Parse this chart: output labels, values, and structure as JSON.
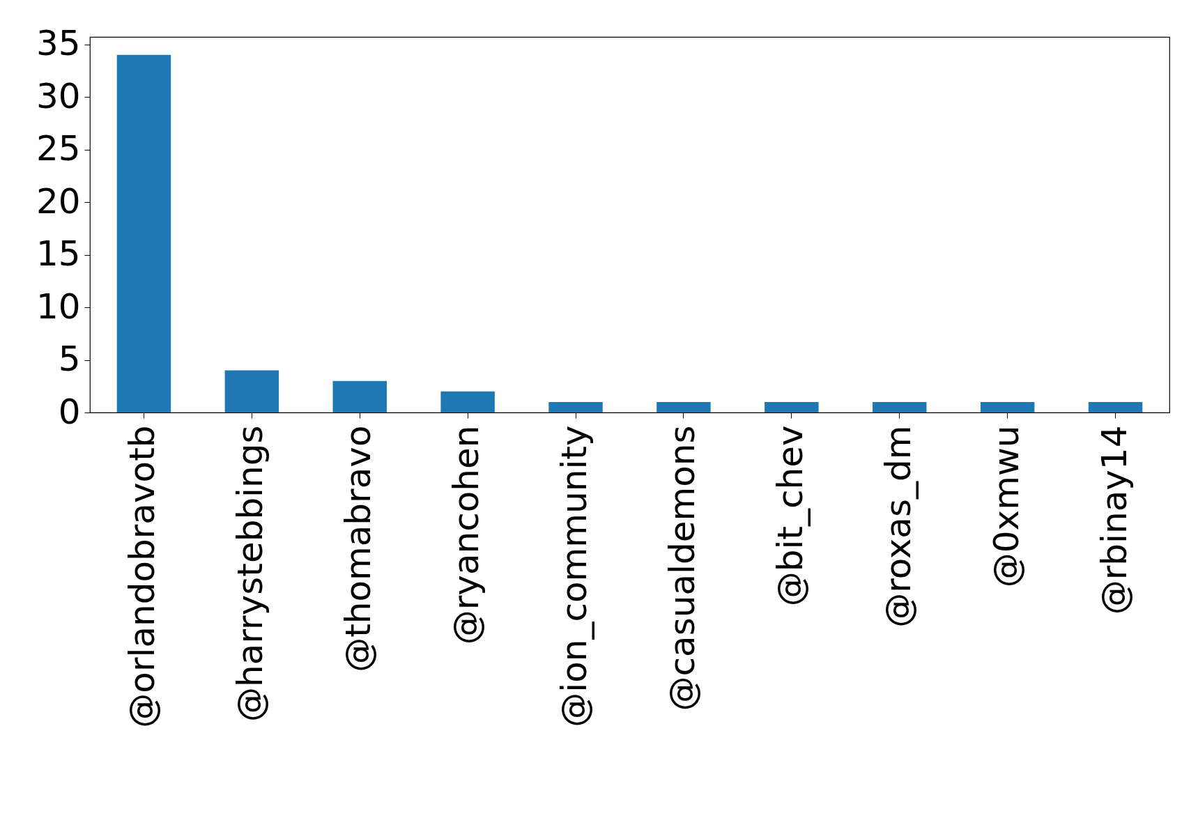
{
  "chart_data": {
    "type": "bar",
    "categories": [
      "@orlandobravotb",
      "@harrystebbings",
      "@thomabravo",
      "@ryancohen",
      "@ion_community",
      "@casualdemons",
      "@bit_chev",
      "@roxas_dm",
      "@0xmwu",
      "@rbinay14"
    ],
    "values": [
      34,
      4,
      3,
      2,
      1,
      1,
      1,
      1,
      1,
      1
    ],
    "color": "#1f77b4",
    "ylim": [
      0,
      35.7
    ],
    "yticks": [
      0,
      5,
      10,
      15,
      20,
      25,
      30,
      35
    ],
    "grid": false
  }
}
